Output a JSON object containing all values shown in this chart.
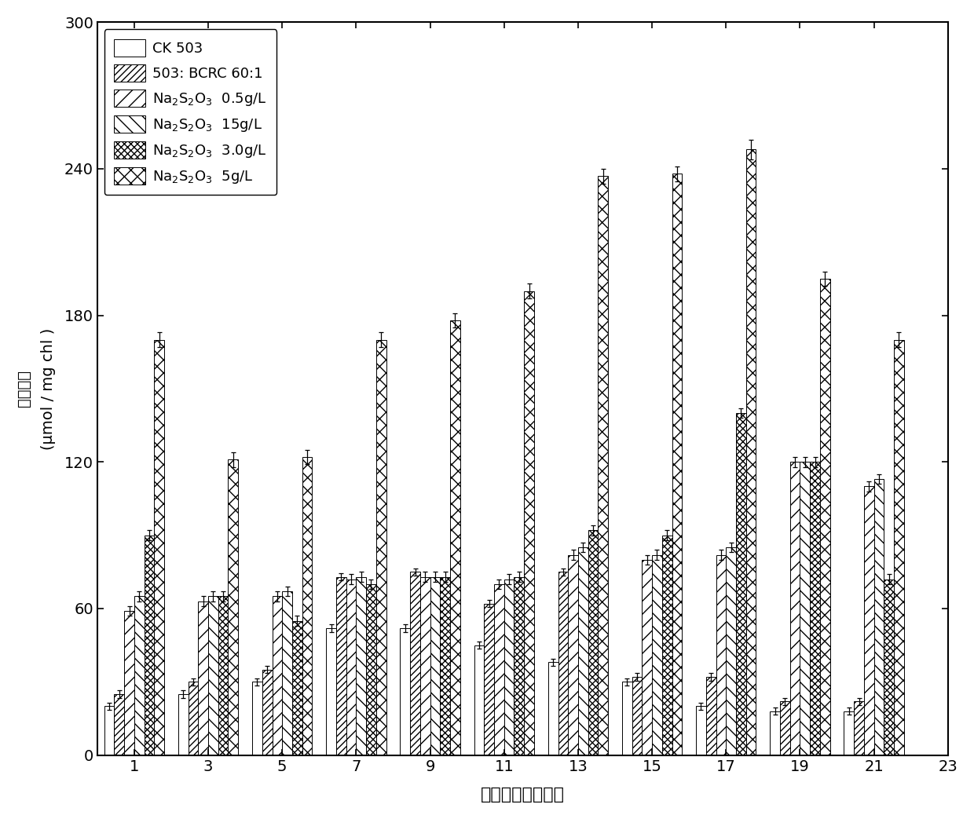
{
  "xlabel": "共培养时间（天）",
  "ylabel_line1": "氢气含量",
  "ylabel_line2": "(μmol / mg chl )",
  "x_positions": [
    1,
    3,
    5,
    7,
    9,
    11,
    13,
    15,
    17,
    19,
    21
  ],
  "series_labels": [
    "CK 503",
    "503: BCRC 60:1",
    "Na$_2$S$_2$O$_3$  0.5g/L",
    "Na$_2$S$_2$O$_3$  15g/L",
    "Na$_2$S$_2$O$_3$  3.0g/L",
    "Na$_2$S$_2$O$_3$  5g/L"
  ],
  "values": [
    [
      20,
      25,
      30,
      52,
      52,
      45,
      38,
      30,
      20,
      18,
      18
    ],
    [
      25,
      30,
      35,
      73,
      75,
      62,
      75,
      32,
      32,
      22,
      22
    ],
    [
      59,
      63,
      65,
      72,
      73,
      70,
      82,
      80,
      82,
      120,
      110
    ],
    [
      65,
      65,
      67,
      73,
      73,
      72,
      85,
      82,
      85,
      120,
      113
    ],
    [
      90,
      65,
      55,
      70,
      73,
      73,
      92,
      90,
      140,
      120,
      72
    ],
    [
      170,
      121,
      122,
      170,
      178,
      190,
      237,
      238,
      248,
      195,
      170
    ]
  ],
  "errors": [
    [
      1.5,
      1.5,
      1.5,
      1.5,
      1.5,
      1.5,
      1.5,
      1.5,
      1.5,
      1.5,
      1.5
    ],
    [
      1.5,
      1.5,
      1.5,
      1.5,
      1.5,
      1.5,
      1.5,
      1.5,
      1.5,
      1.5,
      1.5
    ],
    [
      2,
      2,
      2,
      2,
      2,
      2,
      2,
      2,
      2,
      2,
      2
    ],
    [
      2,
      2,
      2,
      2,
      2,
      2,
      2,
      2,
      2,
      2,
      2
    ],
    [
      2,
      2,
      2,
      2,
      2,
      2,
      2,
      2,
      2,
      2,
      2
    ],
    [
      3,
      3,
      3,
      3,
      3,
      3,
      3,
      3,
      4,
      3,
      3
    ]
  ],
  "bar_width": 0.27,
  "ylim": [
    0,
    300
  ],
  "yticks": [
    0,
    60,
    120,
    180,
    240,
    300
  ],
  "xlim": [
    0,
    23
  ],
  "xticks": [
    1,
    3,
    5,
    7,
    9,
    11,
    13,
    15,
    17,
    19,
    21,
    23
  ]
}
